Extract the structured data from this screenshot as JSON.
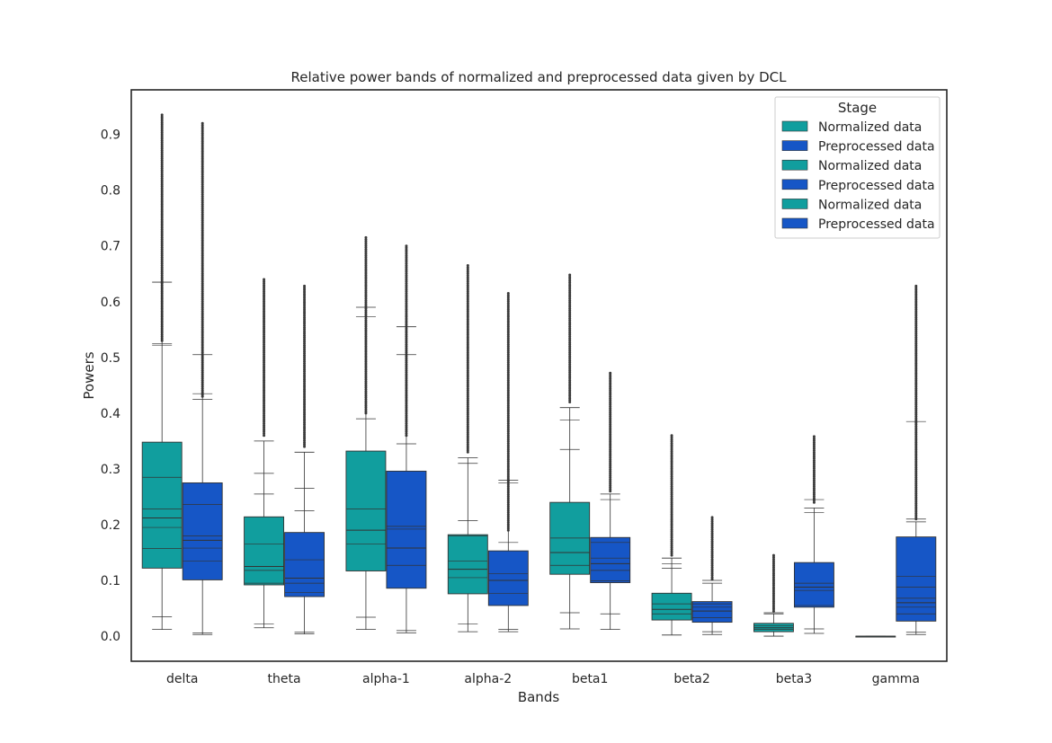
{
  "chart_data": {
    "type": "box",
    "title": "Relative power bands of normalized and preprocessed data given by DCL",
    "xlabel": "Bands",
    "ylabel": "Powers",
    "ylim": [
      -0.045,
      0.98
    ],
    "yticks": [
      0.0,
      0.1,
      0.2,
      0.3,
      0.4,
      0.5,
      0.6,
      0.7,
      0.8,
      0.9
    ],
    "ytick_labels": [
      "0.0",
      "0.1",
      "0.2",
      "0.3",
      "0.4",
      "0.5",
      "0.6",
      "0.7",
      "0.8",
      "0.9"
    ],
    "categories": [
      "delta",
      "theta",
      "alpha-1",
      "alpha-2",
      "beta1",
      "beta2",
      "beta3",
      "gamma"
    ],
    "grid": false,
    "legend": {
      "title": "Stage",
      "position": "top-right",
      "entries": [
        {
          "label": "Normalized data",
          "color": "#119e9e"
        },
        {
          "label": "Preprocessed data",
          "color": "#1656c6"
        },
        {
          "label": "Normalized data",
          "color": "#119e9e"
        },
        {
          "label": "Preprocessed data",
          "color": "#1656c6"
        },
        {
          "label": "Normalized data",
          "color": "#119e9e"
        },
        {
          "label": "Preprocessed data",
          "color": "#1656c6"
        }
      ]
    },
    "colors": {
      "normalized": "#119e9e",
      "preprocessed": "#1656c6",
      "line": "#333333"
    },
    "series": [
      {
        "name": "Normalized data",
        "boxes": [
          {
            "q1": 0.122,
            "median": 0.212,
            "q3": 0.348,
            "whislo": 0.012,
            "whishi": 0.635,
            "extra_lines": [
              0.157,
              0.195,
              0.228,
              0.285,
              0.525,
              0.522,
              0.035
            ],
            "outliers_min": 0.53,
            "outliers_max": 0.935
          },
          {
            "q1": 0.092,
            "median": 0.125,
            "q3": 0.214,
            "whislo": 0.015,
            "whishi": 0.35,
            "extra_lines": [
              0.095,
              0.118,
              0.165,
              0.255,
              0.292,
              0.022
            ],
            "outliers_min": 0.36,
            "outliers_max": 0.64
          },
          {
            "q1": 0.117,
            "median": 0.19,
            "q3": 0.332,
            "whislo": 0.012,
            "whishi": 0.59,
            "extra_lines": [
              0.165,
              0.228,
              0.39,
              0.573,
              0.034
            ],
            "outliers_min": 0.4,
            "outliers_max": 0.715
          },
          {
            "q1": 0.076,
            "median": 0.12,
            "q3": 0.182,
            "whislo": 0.008,
            "whishi": 0.32,
            "extra_lines": [
              0.105,
              0.135,
              0.18,
              0.207,
              0.31,
              0.022
            ],
            "outliers_min": 0.33,
            "outliers_max": 0.665
          },
          {
            "q1": 0.111,
            "median": 0.15,
            "q3": 0.24,
            "whislo": 0.013,
            "whishi": 0.41,
            "extra_lines": [
              0.127,
              0.176,
              0.335,
              0.388,
              0.042
            ],
            "outliers_min": 0.42,
            "outliers_max": 0.648
          },
          {
            "q1": 0.029,
            "median": 0.048,
            "q3": 0.077,
            "whislo": 0.002,
            "whishi": 0.14,
            "extra_lines": [
              0.04,
              0.058,
              0.122,
              0.13
            ],
            "outliers_min": 0.145,
            "outliers_max": 0.36
          },
          {
            "q1": 0.008,
            "median": 0.015,
            "q3": 0.023,
            "whislo": 0.0,
            "whishi": 0.04,
            "extra_lines": [
              0.012,
              0.019,
              0.042
            ],
            "outliers_min": 0.045,
            "outliers_max": 0.145
          },
          {
            "q1": 0.0,
            "median": 0.0,
            "q3": 0.0,
            "whislo": 0.0,
            "whishi": 0.0,
            "extra_lines": [],
            "outliers_min": 0.0,
            "outliers_max": 0.0
          }
        ]
      },
      {
        "name": "Preprocessed data",
        "boxes": [
          {
            "q1": 0.101,
            "median": 0.172,
            "q3": 0.275,
            "whislo": 0.003,
            "whishi": 0.505,
            "extra_lines": [
              0.135,
              0.158,
              0.18,
              0.236,
              0.435,
              0.425,
              0.006
            ],
            "outliers_min": 0.43,
            "outliers_max": 0.92
          },
          {
            "q1": 0.071,
            "median": 0.104,
            "q3": 0.186,
            "whislo": 0.004,
            "whishi": 0.33,
            "extra_lines": [
              0.078,
              0.095,
              0.137,
              0.225,
              0.265,
              0.007
            ],
            "outliers_min": 0.34,
            "outliers_max": 0.628
          },
          {
            "q1": 0.086,
            "median": 0.158,
            "q3": 0.296,
            "whislo": 0.006,
            "whishi": 0.555,
            "extra_lines": [
              0.127,
              0.192,
              0.197,
              0.345,
              0.505,
              0.01
            ],
            "outliers_min": 0.36,
            "outliers_max": 0.7
          },
          {
            "q1": 0.055,
            "median": 0.1,
            "q3": 0.153,
            "whislo": 0.008,
            "whishi": 0.28,
            "extra_lines": [
              0.077,
              0.112,
              0.168,
              0.275,
              0.012
            ],
            "outliers_min": 0.19,
            "outliers_max": 0.615
          },
          {
            "q1": 0.096,
            "median": 0.13,
            "q3": 0.177,
            "whislo": 0.012,
            "whishi": 0.255,
            "extra_lines": [
              0.099,
              0.118,
              0.14,
              0.168,
              0.245,
              0.04
            ],
            "outliers_min": 0.26,
            "outliers_max": 0.472
          },
          {
            "q1": 0.025,
            "median": 0.045,
            "q3": 0.062,
            "whislo": 0.003,
            "whishi": 0.095,
            "extra_lines": [
              0.033,
              0.052,
              0.058,
              0.1,
              0.008
            ],
            "outliers_min": 0.102,
            "outliers_max": 0.213
          },
          {
            "q1": 0.052,
            "median": 0.088,
            "q3": 0.132,
            "whislo": 0.005,
            "whishi": 0.23,
            "extra_lines": [
              0.055,
              0.082,
              0.095,
              0.222,
              0.245,
              0.013
            ],
            "outliers_min": 0.24,
            "outliers_max": 0.358
          },
          {
            "q1": 0.027,
            "median": 0.06,
            "q3": 0.178,
            "whislo": 0.003,
            "whishi": 0.205,
            "extra_lines": [
              0.04,
              0.052,
              0.068,
              0.088,
              0.107,
              0.385,
              0.007,
              0.21
            ],
            "outliers_min": 0.21,
            "outliers_max": 0.628
          }
        ]
      }
    ]
  }
}
